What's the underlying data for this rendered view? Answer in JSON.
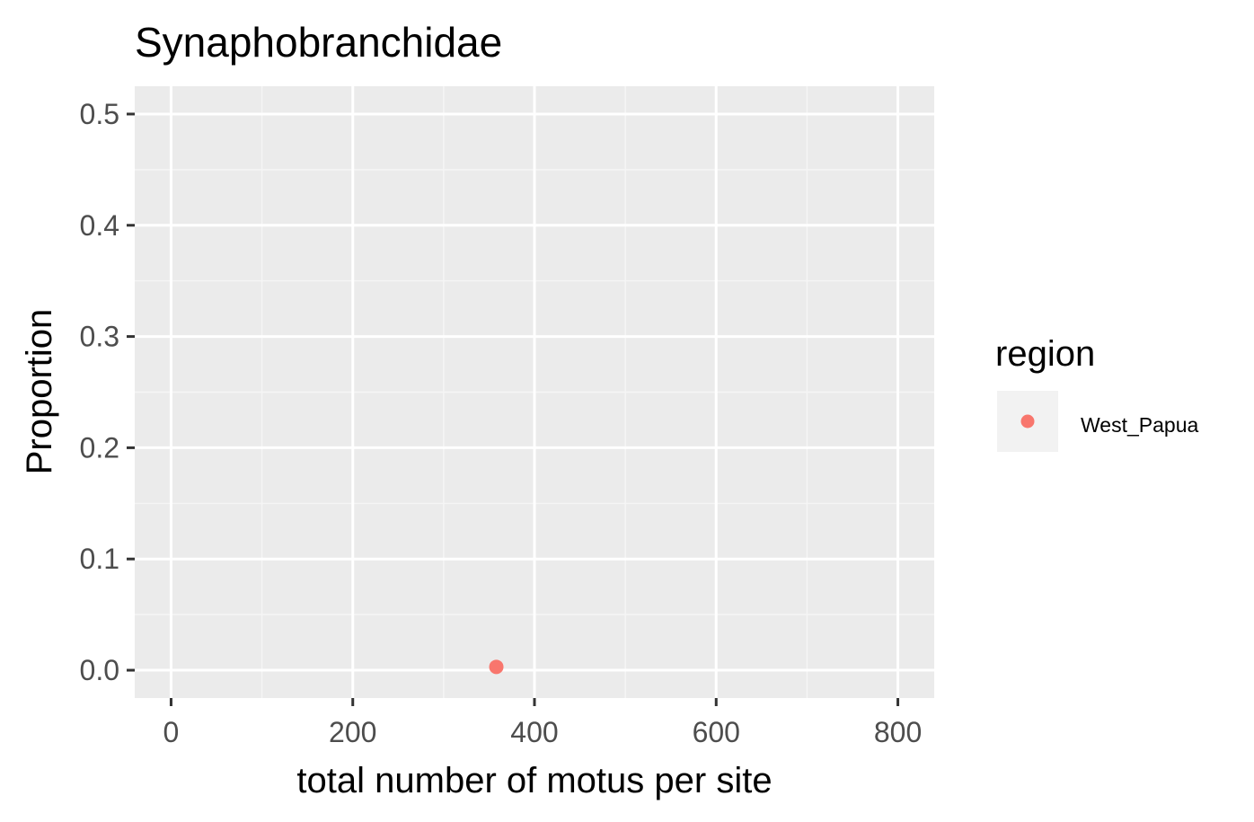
{
  "chart_data": {
    "type": "scatter",
    "title": "Synaphobranchidae",
    "xlabel": "total number of motus per site",
    "ylabel": "Proportion",
    "xlim": [
      -40,
      840
    ],
    "ylim": [
      -0.025,
      0.525
    ],
    "x_ticks": [
      0,
      200,
      400,
      600,
      800
    ],
    "x_tick_labels": [
      "0",
      "200",
      "400",
      "600",
      "800"
    ],
    "x_minor_ticks": [
      100,
      300,
      500,
      700
    ],
    "y_ticks": [
      0.0,
      0.1,
      0.2,
      0.3,
      0.4,
      0.5
    ],
    "y_tick_labels": [
      "0.0",
      "0.1",
      "0.2",
      "0.3",
      "0.4",
      "0.5"
    ],
    "y_minor_ticks": [
      0.05,
      0.15,
      0.25,
      0.35,
      0.45
    ],
    "grid": true,
    "legend": {
      "title": "region",
      "placement": "right",
      "entries": [
        {
          "label": "West_Papua",
          "color": "#F8766D"
        }
      ]
    },
    "series": [
      {
        "name": "West_Papua",
        "color": "#F8766D",
        "points": [
          {
            "x": 358,
            "y": 0.003
          }
        ]
      }
    ]
  },
  "colors": {
    "panel_background": "#EBEBEB",
    "grid_major": "#FFFFFF",
    "grid_minor": "#F5F5F5",
    "tick_color": "#333333",
    "tick_label_color": "#4D4D4D",
    "legend_key_background": "#F2F2F2"
  }
}
